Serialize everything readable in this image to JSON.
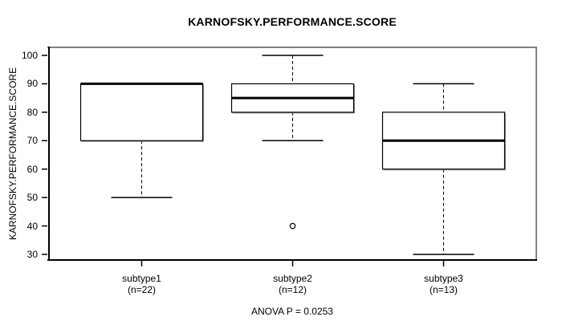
{
  "page": {
    "background": "#ffffff"
  },
  "chart_data": {
    "type": "boxplot",
    "title": "KARNOFSKY.PERFORMANCE.SCORE",
    "ylabel": "KARNOFSKY.PERFORMANCE.SCORE",
    "xlabel": "",
    "annotation": "ANOVA P = 0.0253",
    "ylim": [
      30,
      100
    ],
    "yticks": [
      30,
      40,
      50,
      60,
      70,
      80,
      90,
      100
    ],
    "grid": false,
    "legend": "none",
    "colors": {
      "box_fill": "#ffffff",
      "line": "#000000",
      "frame_shade": "#808080",
      "box_shadow": "#909090"
    },
    "groups": [
      {
        "label": "subtype1",
        "sublabel": "(n=22)",
        "n": 22,
        "whisker_low": 50,
        "q1": 70,
        "median": 90,
        "q3": 90,
        "whisker_high": 90,
        "outliers": []
      },
      {
        "label": "subtype2",
        "sublabel": "(n=12)",
        "n": 12,
        "whisker_low": 70,
        "q1": 80,
        "median": 85,
        "q3": 90,
        "whisker_high": 100,
        "outliers": [
          40
        ]
      },
      {
        "label": "subtype3",
        "sublabel": "(n=13)",
        "n": 13,
        "whisker_low": 30,
        "q1": 60,
        "median": 70,
        "q3": 80,
        "whisker_high": 90,
        "outliers": []
      }
    ]
  }
}
